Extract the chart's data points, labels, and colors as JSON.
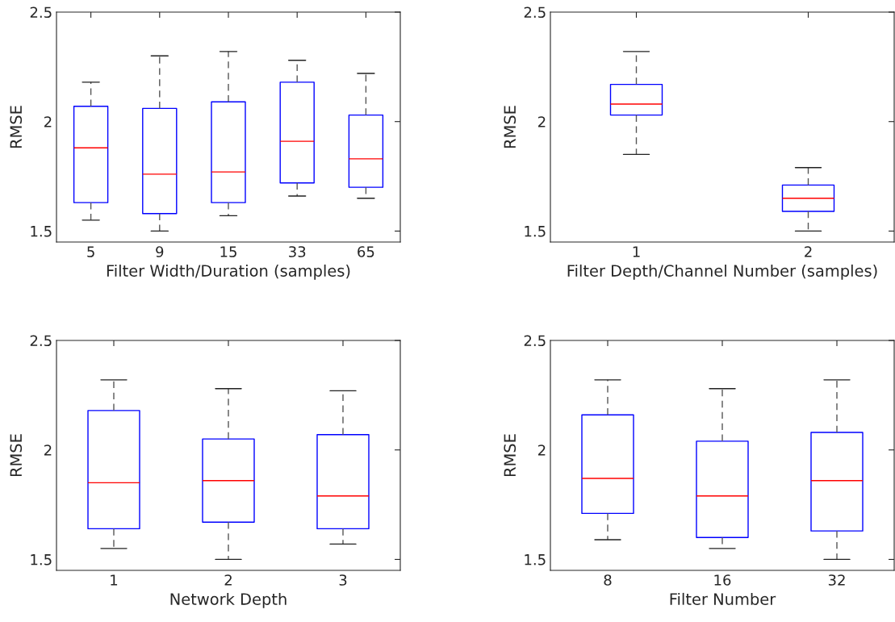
{
  "chart_data": [
    {
      "type": "box",
      "xlabel": "Filter Width/Duration (samples)",
      "ylabel": "RMSE",
      "categories": [
        "5",
        "9",
        "15",
        "33",
        "65"
      ],
      "ylim": [
        1.45,
        2.5
      ],
      "yticks": [
        1.5,
        2,
        2.5
      ],
      "grid": false,
      "series": [
        {
          "color": "#0000ff",
          "boxes": [
            {
              "low": 1.55,
              "q1": 1.63,
              "median": 1.88,
              "q3": 2.07,
              "high": 2.18
            },
            {
              "low": 1.5,
              "q1": 1.58,
              "median": 1.76,
              "q3": 2.06,
              "high": 2.3
            },
            {
              "low": 1.57,
              "q1": 1.63,
              "median": 1.77,
              "q3": 2.09,
              "high": 2.32
            },
            {
              "low": 1.66,
              "q1": 1.72,
              "median": 1.91,
              "q3": 2.18,
              "high": 2.28
            },
            {
              "low": 1.65,
              "q1": 1.7,
              "median": 1.83,
              "q3": 2.03,
              "high": 2.22
            }
          ]
        }
      ]
    },
    {
      "type": "box",
      "xlabel": "Filter Depth/Channel Number (samples)",
      "ylabel": "RMSE",
      "categories": [
        "1",
        "2"
      ],
      "ylim": [
        1.45,
        2.5
      ],
      "yticks": [
        1.5,
        2,
        2.5
      ],
      "grid": false,
      "series": [
        {
          "color": "#0000ff",
          "boxes": [
            {
              "low": 1.85,
              "q1": 2.03,
              "median": 2.08,
              "q3": 2.17,
              "high": 2.32
            },
            {
              "low": 1.5,
              "q1": 1.59,
              "median": 1.65,
              "q3": 1.71,
              "high": 1.79
            }
          ]
        }
      ]
    },
    {
      "type": "box",
      "xlabel": "Network Depth",
      "ylabel": "RMSE",
      "categories": [
        "1",
        "2",
        "3"
      ],
      "ylim": [
        1.45,
        2.5
      ],
      "yticks": [
        1.5,
        2,
        2.5
      ],
      "grid": false,
      "series": [
        {
          "color": "#0000ff",
          "boxes": [
            {
              "low": 1.55,
              "q1": 1.64,
              "median": 1.85,
              "q3": 2.18,
              "high": 2.32
            },
            {
              "low": 1.5,
              "q1": 1.67,
              "median": 1.86,
              "q3": 2.05,
              "high": 2.28
            },
            {
              "low": 1.57,
              "q1": 1.64,
              "median": 1.79,
              "q3": 2.07,
              "high": 2.27
            }
          ]
        }
      ]
    },
    {
      "type": "box",
      "xlabel": "Filter Number",
      "ylabel": "RMSE",
      "categories": [
        "8",
        "16",
        "32"
      ],
      "ylim": [
        1.45,
        2.5
      ],
      "yticks": [
        1.5,
        2,
        2.5
      ],
      "grid": false,
      "series": [
        {
          "color": "#0000ff",
          "boxes": [
            {
              "low": 1.59,
              "q1": 1.71,
              "median": 1.87,
              "q3": 2.16,
              "high": 2.32
            },
            {
              "low": 1.55,
              "q1": 1.6,
              "median": 1.79,
              "q3": 2.04,
              "high": 2.28
            },
            {
              "low": 1.5,
              "q1": 1.63,
              "median": 1.86,
              "q3": 2.08,
              "high": 2.32
            }
          ]
        }
      ]
    }
  ]
}
